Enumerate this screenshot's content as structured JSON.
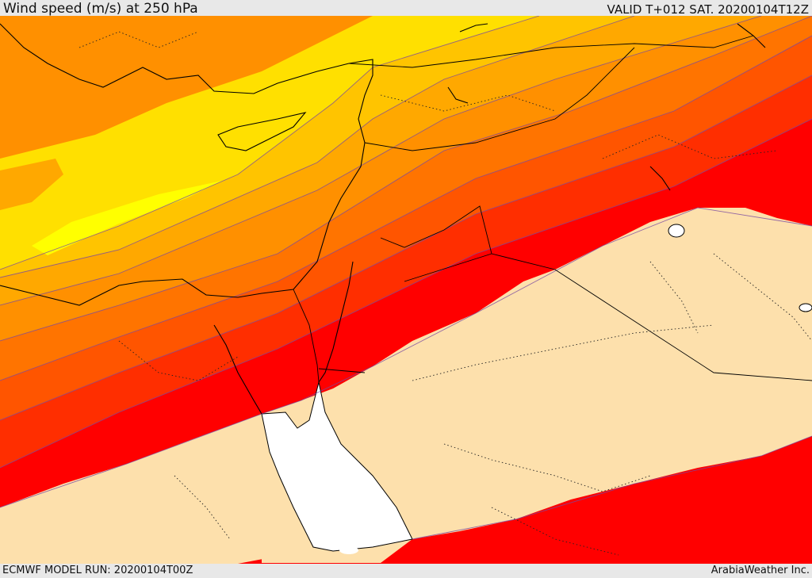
{
  "header": {
    "title": "Wind speed (m/s) at 250 hPa",
    "valid": "VALID T+012 SAT. 20200104T12Z"
  },
  "footer": {
    "model_run": "ECMWF MODEL RUN: 20200104T00Z",
    "credit": "ArabiaWeather Inc."
  },
  "colors": {
    "band_0": "#ffff00",
    "band_1": "#ffe000",
    "band_2": "#ffc400",
    "band_3": "#ffa800",
    "band_4": "#ff9000",
    "band_5": "#ff7400",
    "band_6": "#ff5500",
    "band_7": "#ff2e00",
    "band_8": "#ff0000",
    "low_wind": "#fde0ac",
    "water": "#ffffff"
  }
}
